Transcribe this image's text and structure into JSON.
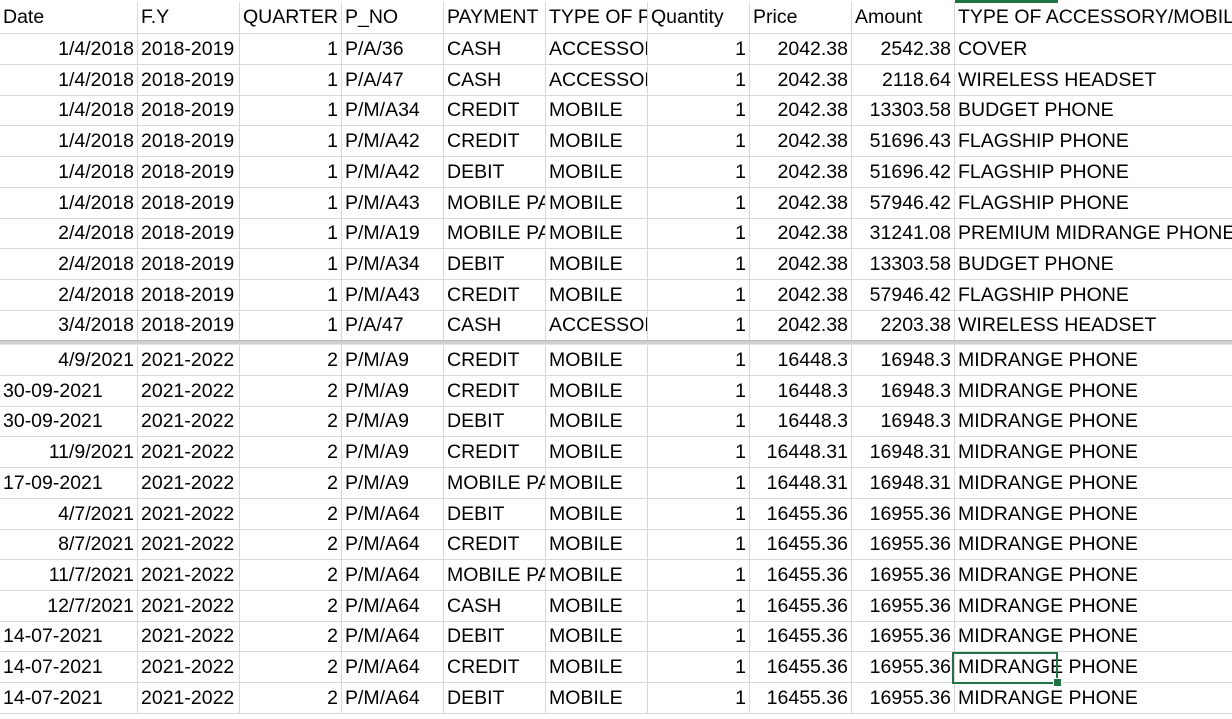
{
  "headers": [
    "Date",
    "F.Y",
    "QUARTER",
    "P_NO",
    "PAYMENT",
    "TYPE OF PI",
    "Quantity",
    "Price",
    "Amount",
    "TYPE OF ACCESSORY/MOBILE"
  ],
  "rows_top": [
    [
      "1/4/2018",
      "2018-2019",
      "1",
      "P/A/36",
      "CASH",
      "ACCESSORY",
      "1",
      "2042.38",
      "2542.38",
      "COVER"
    ],
    [
      "1/4/2018",
      "2018-2019",
      "1",
      "P/A/47",
      "CASH",
      "ACCESSORY",
      "1",
      "2042.38",
      "2118.64",
      "WIRELESS HEADSET"
    ],
    [
      "1/4/2018",
      "2018-2019",
      "1",
      "P/M/A34",
      "CREDIT",
      "MOBILE",
      "1",
      "2042.38",
      "13303.58",
      "BUDGET PHONE"
    ],
    [
      "1/4/2018",
      "2018-2019",
      "1",
      "P/M/A42",
      "CREDIT",
      "MOBILE",
      "1",
      "2042.38",
      "51696.43",
      "FLAGSHIP PHONE"
    ],
    [
      "1/4/2018",
      "2018-2019",
      "1",
      "P/M/A42",
      "DEBIT",
      "MOBILE",
      "1",
      "2042.38",
      "51696.42",
      "FLAGSHIP PHONE"
    ],
    [
      "1/4/2018",
      "2018-2019",
      "1",
      "P/M/A43",
      "MOBILE PAY",
      "MOBILE",
      "1",
      "2042.38",
      "57946.42",
      "FLAGSHIP PHONE"
    ],
    [
      "2/4/2018",
      "2018-2019",
      "1",
      "P/M/A19",
      "MOBILE PAY",
      "MOBILE",
      "1",
      "2042.38",
      "31241.08",
      "PREMIUM MIDRANGE PHONE"
    ],
    [
      "2/4/2018",
      "2018-2019",
      "1",
      "P/M/A34",
      "DEBIT",
      "MOBILE",
      "1",
      "2042.38",
      "13303.58",
      "BUDGET PHONE"
    ],
    [
      "2/4/2018",
      "2018-2019",
      "1",
      "P/M/A43",
      "CREDIT",
      "MOBILE",
      "1",
      "2042.38",
      "57946.42",
      "FLAGSHIP PHONE"
    ],
    [
      "3/4/2018",
      "2018-2019",
      "1",
      "P/A/47",
      "CASH",
      "ACCESSORY",
      "1",
      "2042.38",
      "2203.38",
      "WIRELESS HEADSET"
    ]
  ],
  "rows_bottom": [
    [
      "4/9/2021",
      "2021-2022",
      "2",
      "P/M/A9",
      "CREDIT",
      "MOBILE",
      "1",
      "16448.3",
      "16948.3",
      "MIDRANGE PHONE"
    ],
    [
      "30-09-2021",
      "2021-2022",
      "2",
      "P/M/A9",
      "CREDIT",
      "MOBILE",
      "1",
      "16448.3",
      "16948.3",
      "MIDRANGE PHONE"
    ],
    [
      "30-09-2021",
      "2021-2022",
      "2",
      "P/M/A9",
      "DEBIT",
      "MOBILE",
      "1",
      "16448.3",
      "16948.3",
      "MIDRANGE PHONE"
    ],
    [
      "11/9/2021",
      "2021-2022",
      "2",
      "P/M/A9",
      "CREDIT",
      "MOBILE",
      "1",
      "16448.31",
      "16948.31",
      "MIDRANGE PHONE"
    ],
    [
      "17-09-2021",
      "2021-2022",
      "2",
      "P/M/A9",
      "MOBILE PAY",
      "MOBILE",
      "1",
      "16448.31",
      "16948.31",
      "MIDRANGE PHONE"
    ],
    [
      "4/7/2021",
      "2021-2022",
      "2",
      "P/M/A64",
      "DEBIT",
      "MOBILE",
      "1",
      "16455.36",
      "16955.36",
      "MIDRANGE PHONE"
    ],
    [
      "8/7/2021",
      "2021-2022",
      "2",
      "P/M/A64",
      "CREDIT",
      "MOBILE",
      "1",
      "16455.36",
      "16955.36",
      "MIDRANGE PHONE"
    ],
    [
      "11/7/2021",
      "2021-2022",
      "2",
      "P/M/A64",
      "MOBILE PAY",
      "MOBILE",
      "1",
      "16455.36",
      "16955.36",
      "MIDRANGE PHONE"
    ],
    [
      "12/7/2021",
      "2021-2022",
      "2",
      "P/M/A64",
      "CASH",
      "MOBILE",
      "1",
      "16455.36",
      "16955.36",
      "MIDRANGE PHONE"
    ],
    [
      "14-07-2021",
      "2021-2022",
      "2",
      "P/M/A64",
      "DEBIT",
      "MOBILE",
      "1",
      "16455.36",
      "16955.36",
      "MIDRANGE PHONE"
    ],
    [
      "14-07-2021",
      "2021-2022",
      "2",
      "P/M/A64",
      "CREDIT",
      "MOBILE",
      "1",
      "16455.36",
      "16955.36",
      "MIDRANGE PHONE"
    ],
    [
      "14-07-2021",
      "2021-2022",
      "2",
      "P/M/A64",
      "DEBIT",
      "MOBILE",
      "1",
      "16455.36",
      "16955.36",
      "MIDRANGE PHONE"
    ]
  ],
  "colors": {
    "grid": "#d8d8d8",
    "selection": "#217346",
    "split": "#d0d0d0"
  }
}
